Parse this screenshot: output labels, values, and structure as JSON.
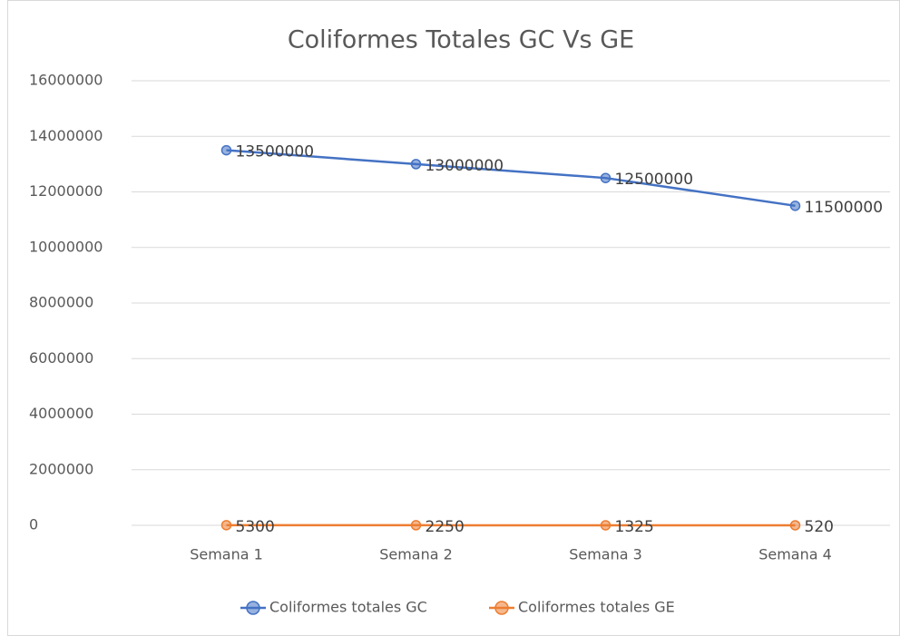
{
  "chart_data": {
    "type": "line",
    "title": "Coliformes Totales GC Vs GE",
    "categories": [
      "Semana 1",
      "Semana 2",
      "Semana 3",
      "Semana 4"
    ],
    "series": [
      {
        "name": "Coliformes totales GC",
        "color": "#4472c4",
        "values": [
          13500000,
          13000000,
          12500000,
          11500000
        ]
      },
      {
        "name": "Coliformes totales GE",
        "color": "#ed7d31",
        "values": [
          5300,
          2250,
          1325,
          520
        ]
      }
    ],
    "ylim": [
      0,
      16000000
    ],
    "yticks": [
      0,
      2000000,
      4000000,
      6000000,
      8000000,
      10000000,
      12000000,
      14000000,
      16000000
    ],
    "grid": true,
    "legend": "bottom"
  }
}
